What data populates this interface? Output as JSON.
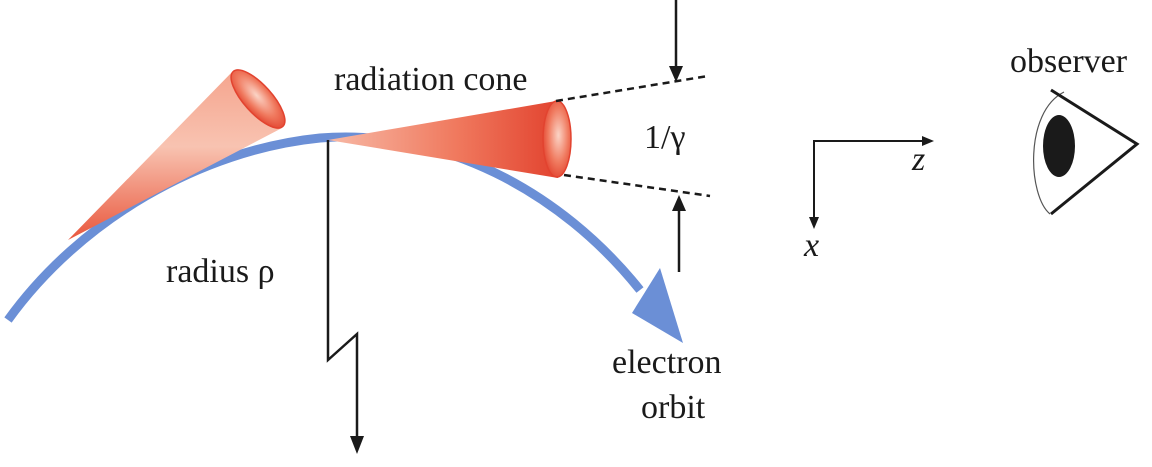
{
  "diagram": {
    "labels": {
      "radiation_cone": "radiation cone",
      "angle": "1/γ",
      "radius": "radius ρ",
      "electron_orbit_line1": "electron",
      "electron_orbit_line2": "orbit",
      "observer": "observer",
      "axis_z": "z",
      "axis_x": "x"
    },
    "colors": {
      "orbit": "#6b8fd6",
      "cone_dark": "#e2432f",
      "cone_light": "#fbd4c6",
      "line": "#1a1a1a",
      "eye_pupil": "#1a1a1a"
    }
  }
}
